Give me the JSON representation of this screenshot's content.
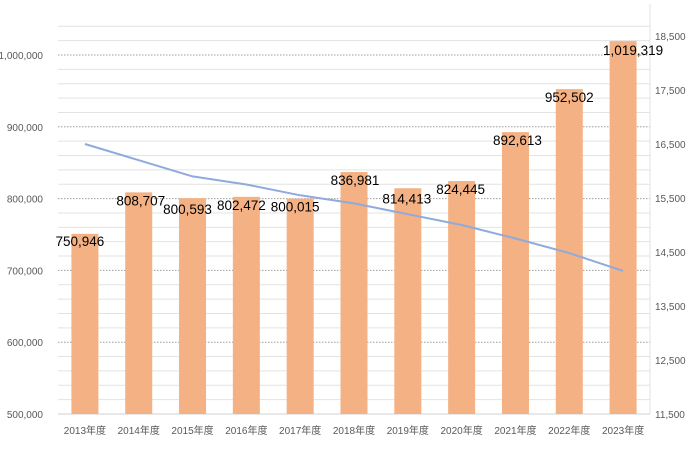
{
  "colors": {
    "bar": "#f4b183",
    "line": "#8faadc",
    "grid_major": "#9e9e9e",
    "grid_minor": "#e3e3e3",
    "axis_text": "#595959",
    "label_text": "#000000"
  },
  "chart_data": {
    "type": "bar",
    "categories": [
      "2013年度",
      "2014年度",
      "2015年度",
      "2016年度",
      "2017年度",
      "2018年度",
      "2019年度",
      "2020年度",
      "2021年度",
      "2022年度",
      "2023年度"
    ],
    "series": [
      {
        "type": "bar",
        "axis": "left",
        "values": [
          750946,
          808707,
          800593,
          802472,
          800015,
          836981,
          814413,
          824445,
          892613,
          952502,
          1019319
        ],
        "labels": [
          "750,946",
          "808,707",
          "800,593",
          "802,472",
          "800,015",
          "836,981",
          "814,413",
          "824,445",
          "892,613",
          "952,502",
          "1,019,319"
        ]
      },
      {
        "type": "line",
        "axis": "right",
        "values": [
          16500,
          16200,
          15900,
          15750,
          15550,
          15400,
          15200,
          15000,
          14750,
          14480,
          14150
        ]
      }
    ],
    "ylim_left": [
      500000,
      1050000
    ],
    "ylim_right": [
      11500,
      19000
    ],
    "yticks_left": [
      "500,000",
      "600,000",
      "700,000",
      "800,000",
      "900,000",
      "1,000,000"
    ],
    "yticks_left_values": [
      500000,
      600000,
      700000,
      800000,
      900000,
      1000000
    ],
    "yticks_right": [
      "11,500",
      "12,500",
      "13,500",
      "14,500",
      "15,500",
      "16,500",
      "17,500",
      "18,500"
    ],
    "yticks_right_values": [
      11500,
      12500,
      13500,
      14500,
      15500,
      16500,
      17500,
      18500
    ],
    "grid": true,
    "legend": "none"
  }
}
